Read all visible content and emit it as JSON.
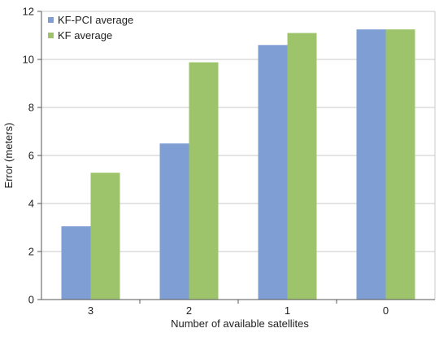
{
  "chart_data": {
    "type": "bar",
    "title": "",
    "xlabel": "Number of available satellites",
    "ylabel": "Error (meters)",
    "categories": [
      "3",
      "2",
      "1",
      "0"
    ],
    "series": [
      {
        "name": "KF-PCI average",
        "values": [
          3.05,
          6.5,
          10.6,
          11.25
        ],
        "color": "#7f9fd4"
      },
      {
        "name": "KF average",
        "values": [
          5.28,
          9.88,
          11.1,
          11.25
        ],
        "color": "#9dc46b"
      }
    ],
    "ylim": [
      0,
      12
    ],
    "yticks": [
      "0",
      "2",
      "4",
      "6",
      "8",
      "10",
      "12"
    ],
    "grid": true,
    "legend_position": "top-left"
  },
  "colors": {
    "grid": "#c8c8c8",
    "axis": "#555555"
  }
}
